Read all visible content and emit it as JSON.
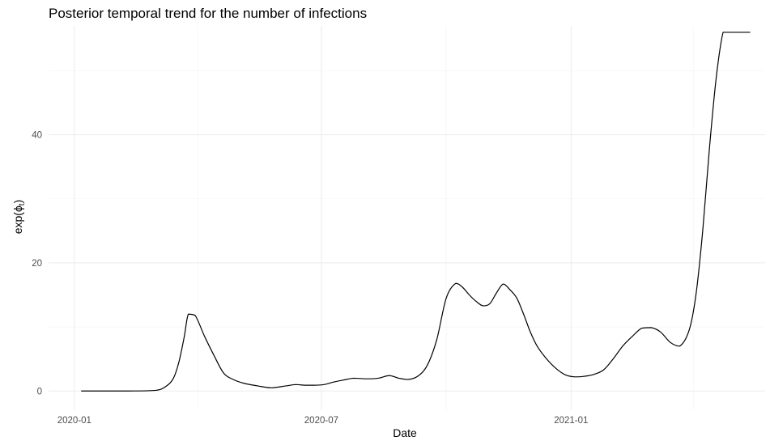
{
  "chart_data": {
    "type": "line",
    "title": "Posterior temporal trend for the number of infections",
    "xlabel": "Date",
    "ylabel_main": "exp",
    "ylabel_symbol": "ϕ",
    "ylabel_subscript": "t",
    "x_ticks": [
      "2020-01-01",
      "2020-07-01",
      "2021-01-01"
    ],
    "x_tick_labels": [
      "2020-01",
      "2020-07",
      "2021-01"
    ],
    "x_minor_ticks": [
      "2020-04-01",
      "2020-10-01",
      "2021-04-01"
    ],
    "xlim": [
      "2019-12-13",
      "2021-05-24"
    ],
    "y_ticks": [
      0,
      20,
      40
    ],
    "y_tick_labels": [
      "0",
      "20",
      "40"
    ],
    "y_minor_ticks": [
      10,
      30,
      50
    ],
    "ylim": [
      -3,
      57
    ],
    "grid": true,
    "legend": "none",
    "line_color": "#000000",
    "series": [
      {
        "x": [
          "2020-01-06",
          "2020-01-20",
          "2020-02-10",
          "2020-03-01",
          "2020-03-09",
          "2020-03-14",
          "2020-03-18",
          "2020-03-22",
          "2020-03-25",
          "2020-03-30",
          "2020-04-06",
          "2020-04-13",
          "2020-04-20",
          "2020-04-27",
          "2020-05-05",
          "2020-05-15",
          "2020-05-25",
          "2020-06-05",
          "2020-06-12",
          "2020-06-19",
          "2020-06-26",
          "2020-07-03",
          "2020-07-10",
          "2020-07-17",
          "2020-07-25",
          "2020-08-03",
          "2020-08-12",
          "2020-08-20",
          "2020-08-27",
          "2020-09-03",
          "2020-09-10",
          "2020-09-17",
          "2020-09-24",
          "2020-10-01",
          "2020-10-08",
          "2020-10-13",
          "2020-10-18",
          "2020-10-23",
          "2020-10-28",
          "2020-11-02",
          "2020-11-07",
          "2020-11-12",
          "2020-11-17",
          "2020-11-22",
          "2020-11-27",
          "2020-12-02",
          "2020-12-07",
          "2020-12-14",
          "2020-12-21",
          "2020-12-28",
          "2021-01-04",
          "2021-01-11",
          "2021-01-18",
          "2021-01-25",
          "2021-02-01",
          "2021-02-08",
          "2021-02-15",
          "2021-02-22",
          "2021-03-01",
          "2021-03-08",
          "2021-03-15",
          "2021-03-22",
          "2021-03-29",
          "2021-04-03",
          "2021-04-08",
          "2021-04-13",
          "2021-04-18",
          "2021-04-23",
          "2021-04-26",
          "2021-04-29",
          "2021-05-01",
          "2021-05-03",
          "2021-05-05",
          "2021-05-07",
          "2021-05-09",
          "2021-05-11",
          "2021-05-13"
        ],
        "y": [
          0,
          0,
          0,
          0.1,
          0.8,
          2.0,
          4.5,
          8.5,
          12.0,
          11.8,
          8.5,
          5.5,
          2.8,
          1.8,
          1.2,
          0.8,
          0.5,
          0.8,
          1.0,
          0.9,
          0.9,
          1.0,
          1.4,
          1.7,
          2.0,
          1.9,
          2.0,
          2.4,
          2.0,
          1.8,
          2.3,
          4.0,
          8.0,
          14.5,
          16.8,
          16.2,
          15.0,
          14.0,
          13.3,
          13.6,
          15.3,
          16.7,
          15.8,
          14.5,
          12.0,
          9.2,
          7.0,
          5.0,
          3.5,
          2.5,
          2.2,
          2.3,
          2.6,
          3.3,
          5.0,
          7.0,
          8.5,
          9.8,
          9.9,
          9.2,
          7.6,
          7.0,
          9.5,
          15.0,
          25.0,
          38.0,
          49.0,
          56.0,
          56.0,
          56.0,
          56.0,
          56.0,
          56.0,
          56.0,
          56.0,
          56.0,
          56.0
        ]
      }
    ]
  }
}
